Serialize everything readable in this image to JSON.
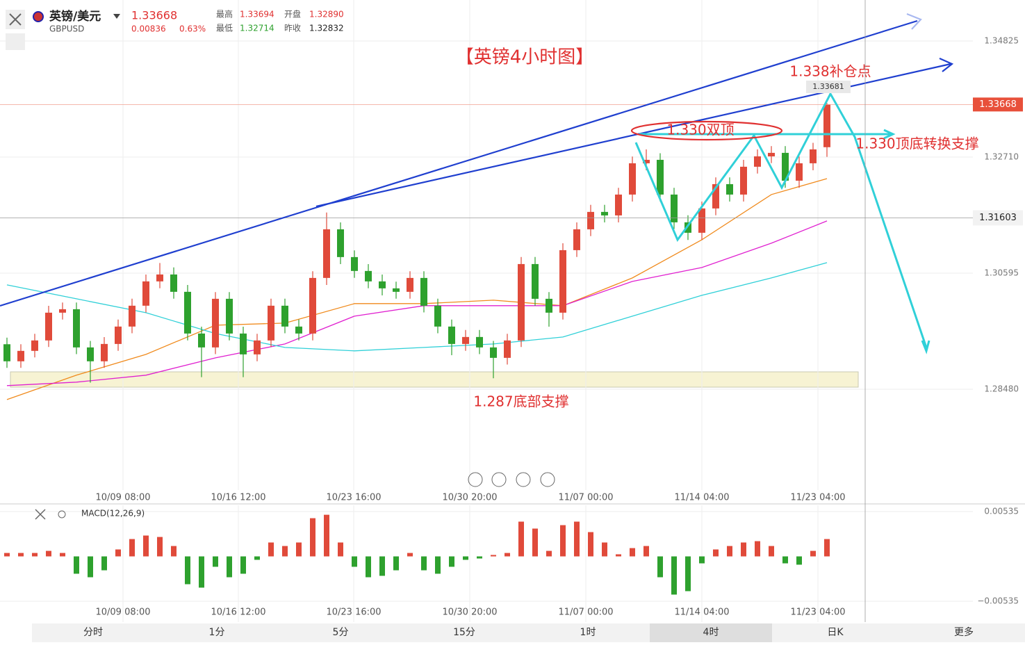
{
  "header": {
    "name": "英镑/美元",
    "symbol": "GBPUSD",
    "price": "1.33668",
    "change": "0.00836",
    "change_pct": "0.63%",
    "stats": [
      {
        "label": "最高",
        "value": "1.33694"
      },
      {
        "label": "开盘",
        "value": "1.32890"
      },
      {
        "label": "最低",
        "value": "1.32714"
      },
      {
        "label": "昨收",
        "value": "1.32832"
      }
    ]
  },
  "chart_data": [
    {
      "type": "candlestick",
      "title": "【英镑4小时图】",
      "annotations": [
        "1.338补仓点",
        "1.330双顶",
        "1.330顶底转换支撑",
        "1.287底部支撑"
      ],
      "last_price": {
        "value": 1.33668,
        "label": "1.33668"
      },
      "crosshair_price": 1.31603,
      "peak": 1.33681,
      "up_color": "#e04a3a",
      "down_color": "#2ea12e",
      "xlim": [
        -0.5,
        69.5
      ],
      "ylim": [
        1.26644,
        1.35572
      ],
      "yticks": [
        1.34825,
        {
          "value": 1.3271,
          "label": "1.32710"
        },
        1.30595,
        {
          "value": 1.2848,
          "label": "1.28480"
        }
      ],
      "xticks": [
        {
          "value": 8.35,
          "label": "10/09 08:00"
        },
        {
          "value": 16.65,
          "label": "10/16 12:00"
        },
        {
          "value": 24.95,
          "label": "10/23 16:00"
        },
        {
          "value": 33.3,
          "label": "10/30 20:00"
        },
        {
          "value": 41.65,
          "label": "11/07 00:00"
        },
        {
          "value": 50,
          "label": "11/14 04:00"
        },
        {
          "value": 58.35,
          "label": "11/23 04:00"
        }
      ],
      "open": [
        1.293,
        1.28989,
        1.29179,
        1.29369,
        1.29875,
        1.29938,
        1.29242,
        1.28989,
        1.29305,
        1.29622,
        1.30002,
        1.30445,
        1.30571,
        1.30255,
        1.29495,
        1.29242,
        1.30128,
        1.29495,
        1.29115,
        1.29369,
        1.30002,
        1.29622,
        1.29495,
        1.30508,
        1.31394,
        1.30888,
        1.30635,
        1.30445,
        1.30318,
        1.30255,
        1.30508,
        1.30002,
        1.29622,
        1.29305,
        1.29432,
        1.29242,
        1.29052,
        1.29369,
        1.30761,
        1.30128,
        1.29875,
        1.31014,
        1.31394,
        1.31711,
        1.31647,
        1.32027,
        1.32597,
        1.3266,
        1.32027,
        1.31521,
        1.31331,
        1.31774,
        1.32217,
        1.32027,
        1.32534,
        1.32723,
        1.32787,
        1.3228,
        1.32597,
        1.3289
      ],
      "high": [
        1.2942,
        1.293,
        1.2949,
        1.3,
        1.3006,
        1.3006,
        1.2936,
        1.2943,
        1.2975,
        1.3013,
        1.3057,
        1.3078,
        1.307,
        1.3038,
        1.2962,
        1.3025,
        1.3025,
        1.2962,
        1.2949,
        1.3013,
        1.3013,
        1.2975,
        1.3063,
        1.317,
        1.3152,
        1.3101,
        1.3076,
        1.3057,
        1.3044,
        1.3063,
        1.3063,
        1.3013,
        1.2975,
        1.2956,
        1.2956,
        1.2936,
        1.2949,
        1.3089,
        1.3089,
        1.3025,
        1.3114,
        1.3152,
        1.3184,
        1.3184,
        1.3215,
        1.3272,
        1.3285,
        1.3278,
        1.3215,
        1.3165,
        1.319,
        1.3234,
        1.3234,
        1.3266,
        1.3285,
        1.3291,
        1.3291,
        1.3272,
        1.3297,
        1.33694
      ],
      "low": [
        1.2887,
        1.2887,
        1.2906,
        1.2925,
        1.2975,
        1.2912,
        1.286,
        1.2887,
        1.2918,
        1.295,
        1.2988,
        1.3032,
        1.3013,
        1.2937,
        1.287,
        1.2912,
        1.2937,
        1.287,
        1.2899,
        1.2925,
        1.295,
        1.2937,
        1.2937,
        1.3038,
        1.3076,
        1.3051,
        1.3032,
        1.3019,
        1.3013,
        1.3013,
        1.2988,
        1.295,
        1.291,
        1.2918,
        1.2912,
        1.2868,
        1.2893,
        1.2925,
        1.3,
        1.2962,
        1.2975,
        1.3089,
        1.3127,
        1.3152,
        1.3152,
        1.319,
        1.3247,
        1.319,
        1.314,
        1.312,
        1.312,
        1.3165,
        1.319,
        1.319,
        1.3241,
        1.326,
        1.3215,
        1.3215,
        1.3247,
        1.32714
      ],
      "close": [
        1.28989,
        1.29179,
        1.29369,
        1.29875,
        1.29938,
        1.29242,
        1.28989,
        1.29305,
        1.29622,
        1.30002,
        1.30445,
        1.30571,
        1.30255,
        1.29495,
        1.29242,
        1.30128,
        1.29495,
        1.29115,
        1.29369,
        1.30002,
        1.29622,
        1.29495,
        1.30508,
        1.31394,
        1.30888,
        1.30635,
        1.30445,
        1.30318,
        1.30255,
        1.30508,
        1.30002,
        1.29622,
        1.29305,
        1.29432,
        1.29242,
        1.29052,
        1.29369,
        1.30761,
        1.30128,
        1.29875,
        1.31014,
        1.31394,
        1.31711,
        1.31647,
        1.32027,
        1.32597,
        1.3266,
        1.32027,
        1.31521,
        1.31331,
        1.31774,
        1.32217,
        1.32027,
        1.32534,
        1.32723,
        1.32787,
        1.3228,
        1.32597,
        1.3285,
        1.33668
      ],
      "ma_x": [
        0,
        5,
        10,
        15,
        20,
        25,
        30,
        35,
        40,
        45,
        50,
        55,
        59
      ],
      "ma": [
        {
          "color": "#f08a1c",
          "values": [
            1.28292,
            1.28736,
            1.29115,
            1.29647,
            1.29685,
            1.3004,
            1.3004,
            1.30103,
            1.30002,
            1.30508,
            1.31204,
            1.32027,
            1.32318
          ]
        },
        {
          "color": "#e020d0",
          "values": [
            1.28546,
            1.28609,
            1.28736,
            1.29052,
            1.29305,
            1.29812,
            1.30002,
            1.30002,
            1.30002,
            1.30445,
            1.30698,
            1.31141,
            1.31546
          ]
        },
        {
          "color": "#30d0d8",
          "values": [
            1.30381,
            1.30128,
            1.29875,
            1.29495,
            1.29242,
            1.29179,
            1.29242,
            1.29305,
            1.29432,
            1.29812,
            1.30191,
            1.30508,
            1.30786
          ]
        }
      ]
    },
    {
      "type": "bar",
      "title": "MACD(12,26,9)",
      "xlim": [
        -0.5,
        69.5
      ],
      "ylim": [
        -0.00784,
        0.0061
      ],
      "yticks": [
        0.00535,
        {
          "value": -0.00535,
          "label": "−0.00535"
        }
      ],
      "xticks": [
        {
          "value": 8.35,
          "label": "10/09 08:00"
        },
        {
          "value": 16.65,
          "label": "10/16 12:00"
        },
        {
          "value": 24.95,
          "label": "10/23 16:00"
        },
        {
          "value": 33.3,
          "label": "10/30 20:00"
        },
        {
          "value": 41.65,
          "label": "11/07 00:00"
        },
        {
          "value": 50,
          "label": "11/14 04:00"
        },
        {
          "value": 58.35,
          "label": "11/23 04:00"
        }
      ],
      "up_color": "#e04a3a",
      "down_color": "#2ea12e",
      "values": [
        0.00041,
        0.00041,
        0.00041,
        0.00066,
        0.00041,
        -0.00207,
        -0.00249,
        -0.00166,
        0.00083,
        0.00207,
        0.00249,
        0.00232,
        0.00124,
        -0.00332,
        -0.00373,
        -0.00124,
        -0.00249,
        -0.00207,
        -0.00041,
        0.00166,
        0.00124,
        0.00166,
        0.00456,
        0.00497,
        0.00166,
        -0.00124,
        -0.00249,
        -0.00232,
        -0.00166,
        0.00041,
        -0.00166,
        -0.00207,
        -0.00124,
        -0.00041,
        -0.00025,
        0.00017,
        0.00041,
        0.00415,
        0.00332,
        0.00066,
        0.00373,
        0.00415,
        0.0029,
        0.00166,
        0.00025,
        0.00099,
        0.00124,
        -0.00249,
        -0.00456,
        -0.00415,
        -0.00083,
        0.00083,
        0.00124,
        0.00166,
        0.00182,
        0.00124,
        -0.00083,
        -0.00099,
        0.00066,
        0.00207
      ]
    }
  ],
  "tabs": [
    "分时",
    "1分",
    "5分",
    "15分",
    "1时",
    "4时",
    "日K",
    "更多"
  ],
  "active_tab": 5
}
